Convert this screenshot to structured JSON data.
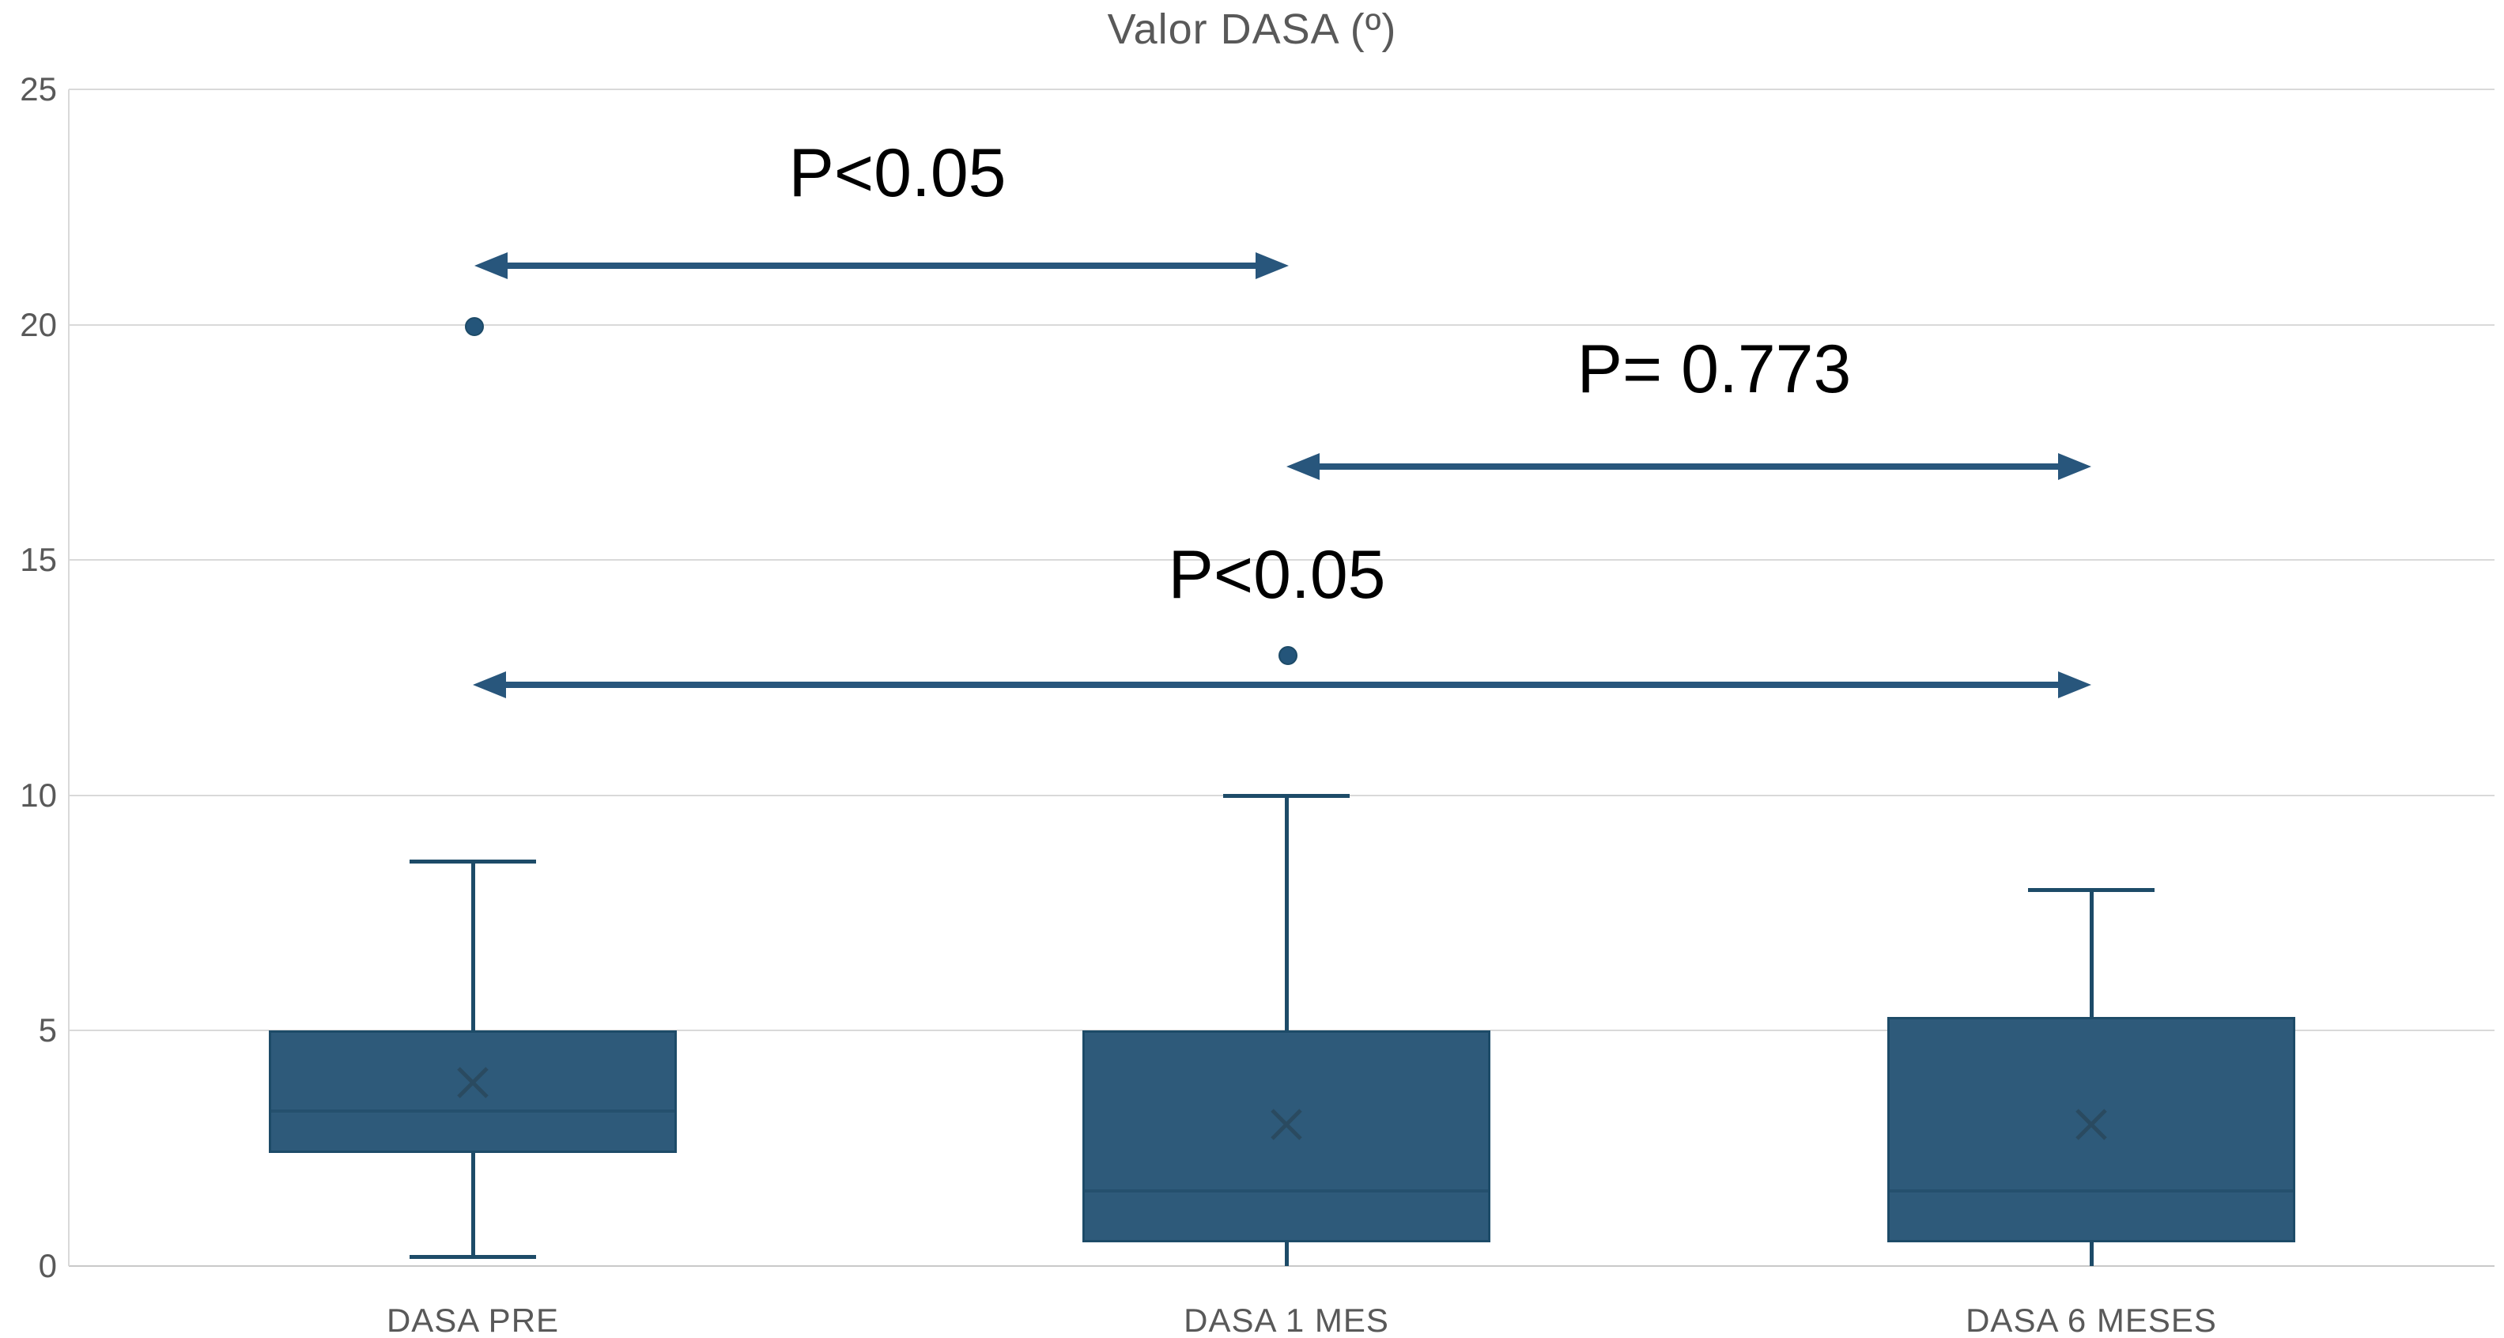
{
  "chart_data": {
    "type": "box",
    "title": "Valor DASA (º)",
    "xlabel": "",
    "ylabel": "",
    "categories": [
      "DASA PRE",
      "DASA 1 MES",
      "DASA 6 MESES"
    ],
    "series": [
      {
        "name": "DASA PRE",
        "min": 0.2,
        "q1": 2.4,
        "median": 3.3,
        "q3": 5.0,
        "max": 8.6,
        "mean": 3.9,
        "outliers": [
          20
        ],
        "min_cap": true
      },
      {
        "name": "DASA 1 MES",
        "min": 0,
        "q1": 0.5,
        "median": 1.6,
        "q3": 5.0,
        "max": 10,
        "mean": 3.0,
        "outliers": [
          13
        ],
        "min_cap": false
      },
      {
        "name": "DASA 6 MESES",
        "min": 0,
        "q1": 0.5,
        "median": 1.6,
        "q3": 5.3,
        "max": 8,
        "mean": 3.0,
        "outliers": [],
        "min_cap": false
      }
    ],
    "annotations": [
      {
        "label": "P<0.05",
        "from": "DASA PRE",
        "to": "DASA 1 MES"
      },
      {
        "label": "P= 0.773",
        "from": "DASA 1 MES",
        "to": "DASA 6 MESES"
      },
      {
        "label": "P<0.05",
        "from": "DASA PRE",
        "to": "DASA 6 MESES"
      }
    ],
    "ylim": [
      0,
      25
    ],
    "yticks": [
      0,
      5,
      10,
      15,
      20,
      25
    ],
    "grid": true,
    "legend": false
  },
  "colors": {
    "box_fill": "#2E5A7A",
    "box_border": "#1D4B68",
    "median_line": "#25506E",
    "mean_marker": "#2A4A60",
    "whisker": "#1D4B68",
    "outlier": "#24557A",
    "arrow": "#28567C",
    "gridline": "#D9D9D9",
    "axis_text": "#595959",
    "annotation_text": "#000000"
  }
}
